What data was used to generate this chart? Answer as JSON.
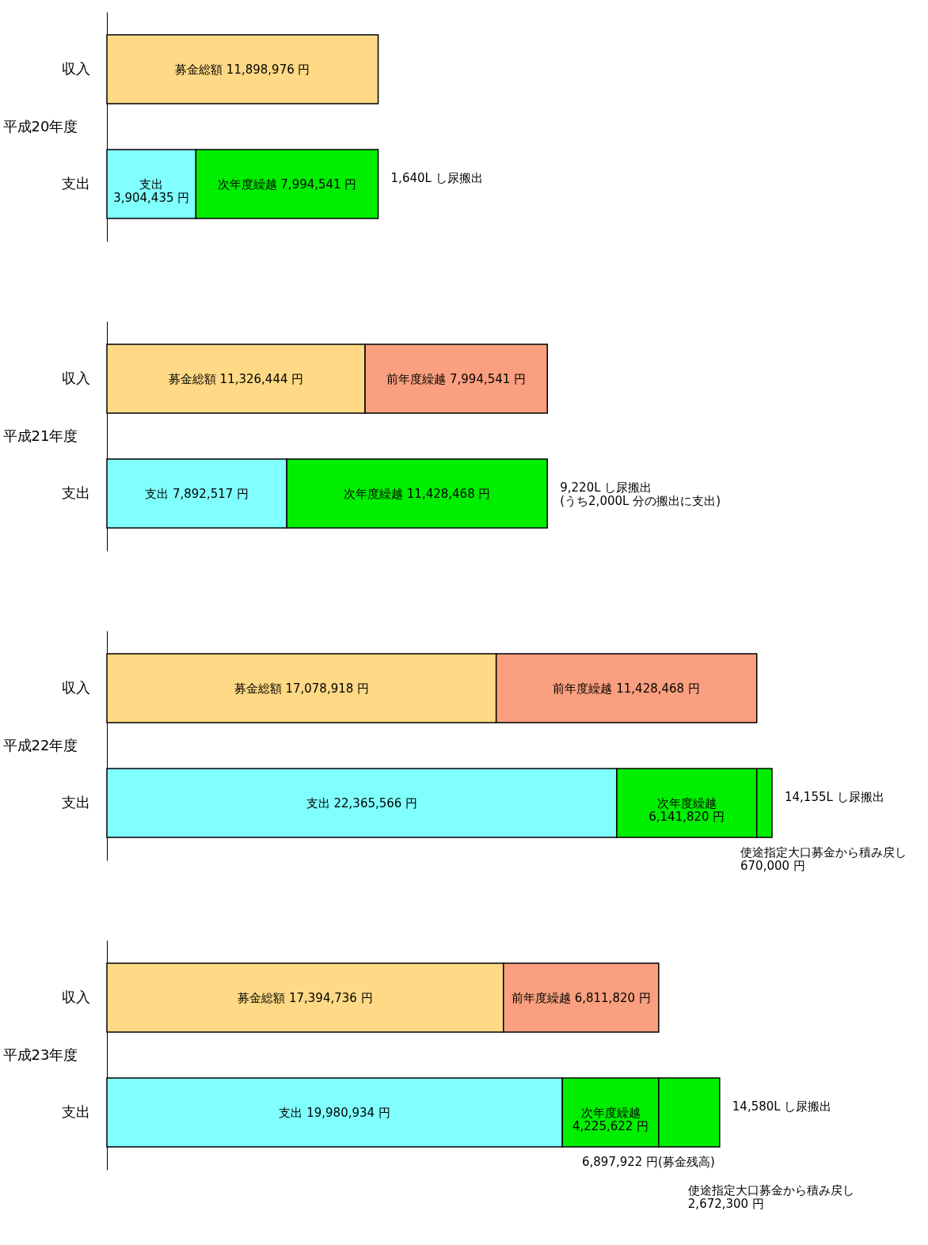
{
  "chart_data": [
    {
      "type": "bar",
      "orientation": "horizontal",
      "stacked": true,
      "ylabel": "平成20年度",
      "categories": [
        "収入",
        "支出"
      ],
      "tick_labels": "y",
      "series": [
        {
          "color": "#ffd985",
          "values": [
            11898976,
            null
          ],
          "value_labels": [
            "募金総額 11,898,976 円",
            null
          ]
        },
        {
          "color": "#80ffff",
          "values": [
            null,
            3904435
          ],
          "value_labels": [
            null,
            "支出\n3,904,435 円"
          ]
        },
        {
          "color": "#00ee00",
          "values": [
            null,
            7994541
          ],
          "value_labels": [
            null,
            "次年度繰越 7,994,541 円"
          ]
        }
      ],
      "annotations": [
        {
          "text": "1,640L し尿搬出",
          "x": 11898976,
          "y": "支出"
        }
      ]
    },
    {
      "type": "bar",
      "orientation": "horizontal",
      "stacked": true,
      "ylabel": "平成21年度",
      "categories": [
        "収入",
        "支出"
      ],
      "tick_labels": "y",
      "series": [
        {
          "color": "#ffd985",
          "values": [
            11326444,
            null
          ],
          "value_labels": [
            "募金総額 11,326,444 円",
            null
          ]
        },
        {
          "color": "#fa9f7f",
          "values": [
            7994541,
            null
          ],
          "value_labels": [
            "前年度繰越 7,994,541 円",
            null
          ]
        },
        {
          "color": "#80ffff",
          "values": [
            null,
            7892517
          ],
          "value_labels": [
            null,
            "支出 7,892,517 円"
          ]
        },
        {
          "color": "#00ee00",
          "values": [
            null,
            11428468
          ],
          "value_labels": [
            null,
            "次年度繰越 11,428,468 円"
          ]
        }
      ],
      "annotations": [
        {
          "text": "9,220L し尿搬出\n(うち2,000L 分の搬出に支出)",
          "x": 19320985,
          "y": "支出"
        }
      ]
    },
    {
      "type": "bar",
      "orientation": "horizontal",
      "stacked": true,
      "ylabel": "平成22年度",
      "categories": [
        "収入",
        "支出"
      ],
      "tick_labels": "y",
      "series": [
        {
          "color": "#ffd985",
          "values": [
            17078918,
            null
          ],
          "value_labels": [
            "募金総額 17,078,918 円",
            null
          ]
        },
        {
          "color": "#fa9f7f",
          "values": [
            11428468,
            null
          ],
          "value_labels": [
            "前年度繰越 11,428,468 円",
            null
          ]
        },
        {
          "color": "#80ffff",
          "values": [
            null,
            22365566
          ],
          "value_labels": [
            null,
            "支出 22,365,566 円"
          ]
        },
        {
          "color": "#00ee00",
          "values": [
            null,
            6141820
          ],
          "value_labels": [
            null,
            "次年度繰越\n6,141,820 円"
          ]
        },
        {
          "color": "#00ee00",
          "values": [
            null,
            670000
          ],
          "value_labels": [
            null,
            null
          ]
        }
      ],
      "annotations": [
        {
          "text": "14,155L し尿搬出",
          "x": 29177386,
          "y": "支出"
        },
        "使途指定大口募金から積み戻し\n670,000 円"
      ]
    },
    {
      "type": "bar",
      "orientation": "horizontal",
      "stacked": true,
      "ylabel": "平成23年度",
      "categories": [
        "収入",
        "支出"
      ],
      "tick_labels": "y",
      "series": [
        {
          "color": "#ffd985",
          "values": [
            17394736,
            null
          ],
          "value_labels": [
            "募金総額 17,394,736 円",
            null
          ]
        },
        {
          "color": "#fa9f7f",
          "values": [
            6811820,
            null
          ],
          "value_labels": [
            "前年度繰越 6,811,820 円",
            null
          ]
        },
        {
          "color": "#80ffff",
          "values": [
            null,
            19980934
          ],
          "value_labels": [
            null,
            "支出 19,980,934 円"
          ]
        },
        {
          "color": "#00ee00",
          "values": [
            null,
            4225622
          ],
          "value_labels": [
            null,
            "次年度繰越\n4,225,622 円"
          ]
        },
        {
          "color": "#00ee00",
          "values": [
            null,
            2672300
          ],
          "value_labels": [
            null,
            null
          ]
        }
      ],
      "annotations": [
        {
          "text": "14,580L し尿搬出",
          "x": 26878856,
          "y": "支出"
        },
        "6,897,922 円(募金残高)",
        "使途指定大口募金から積み戻し\n2,672,300 円"
      ]
    }
  ]
}
